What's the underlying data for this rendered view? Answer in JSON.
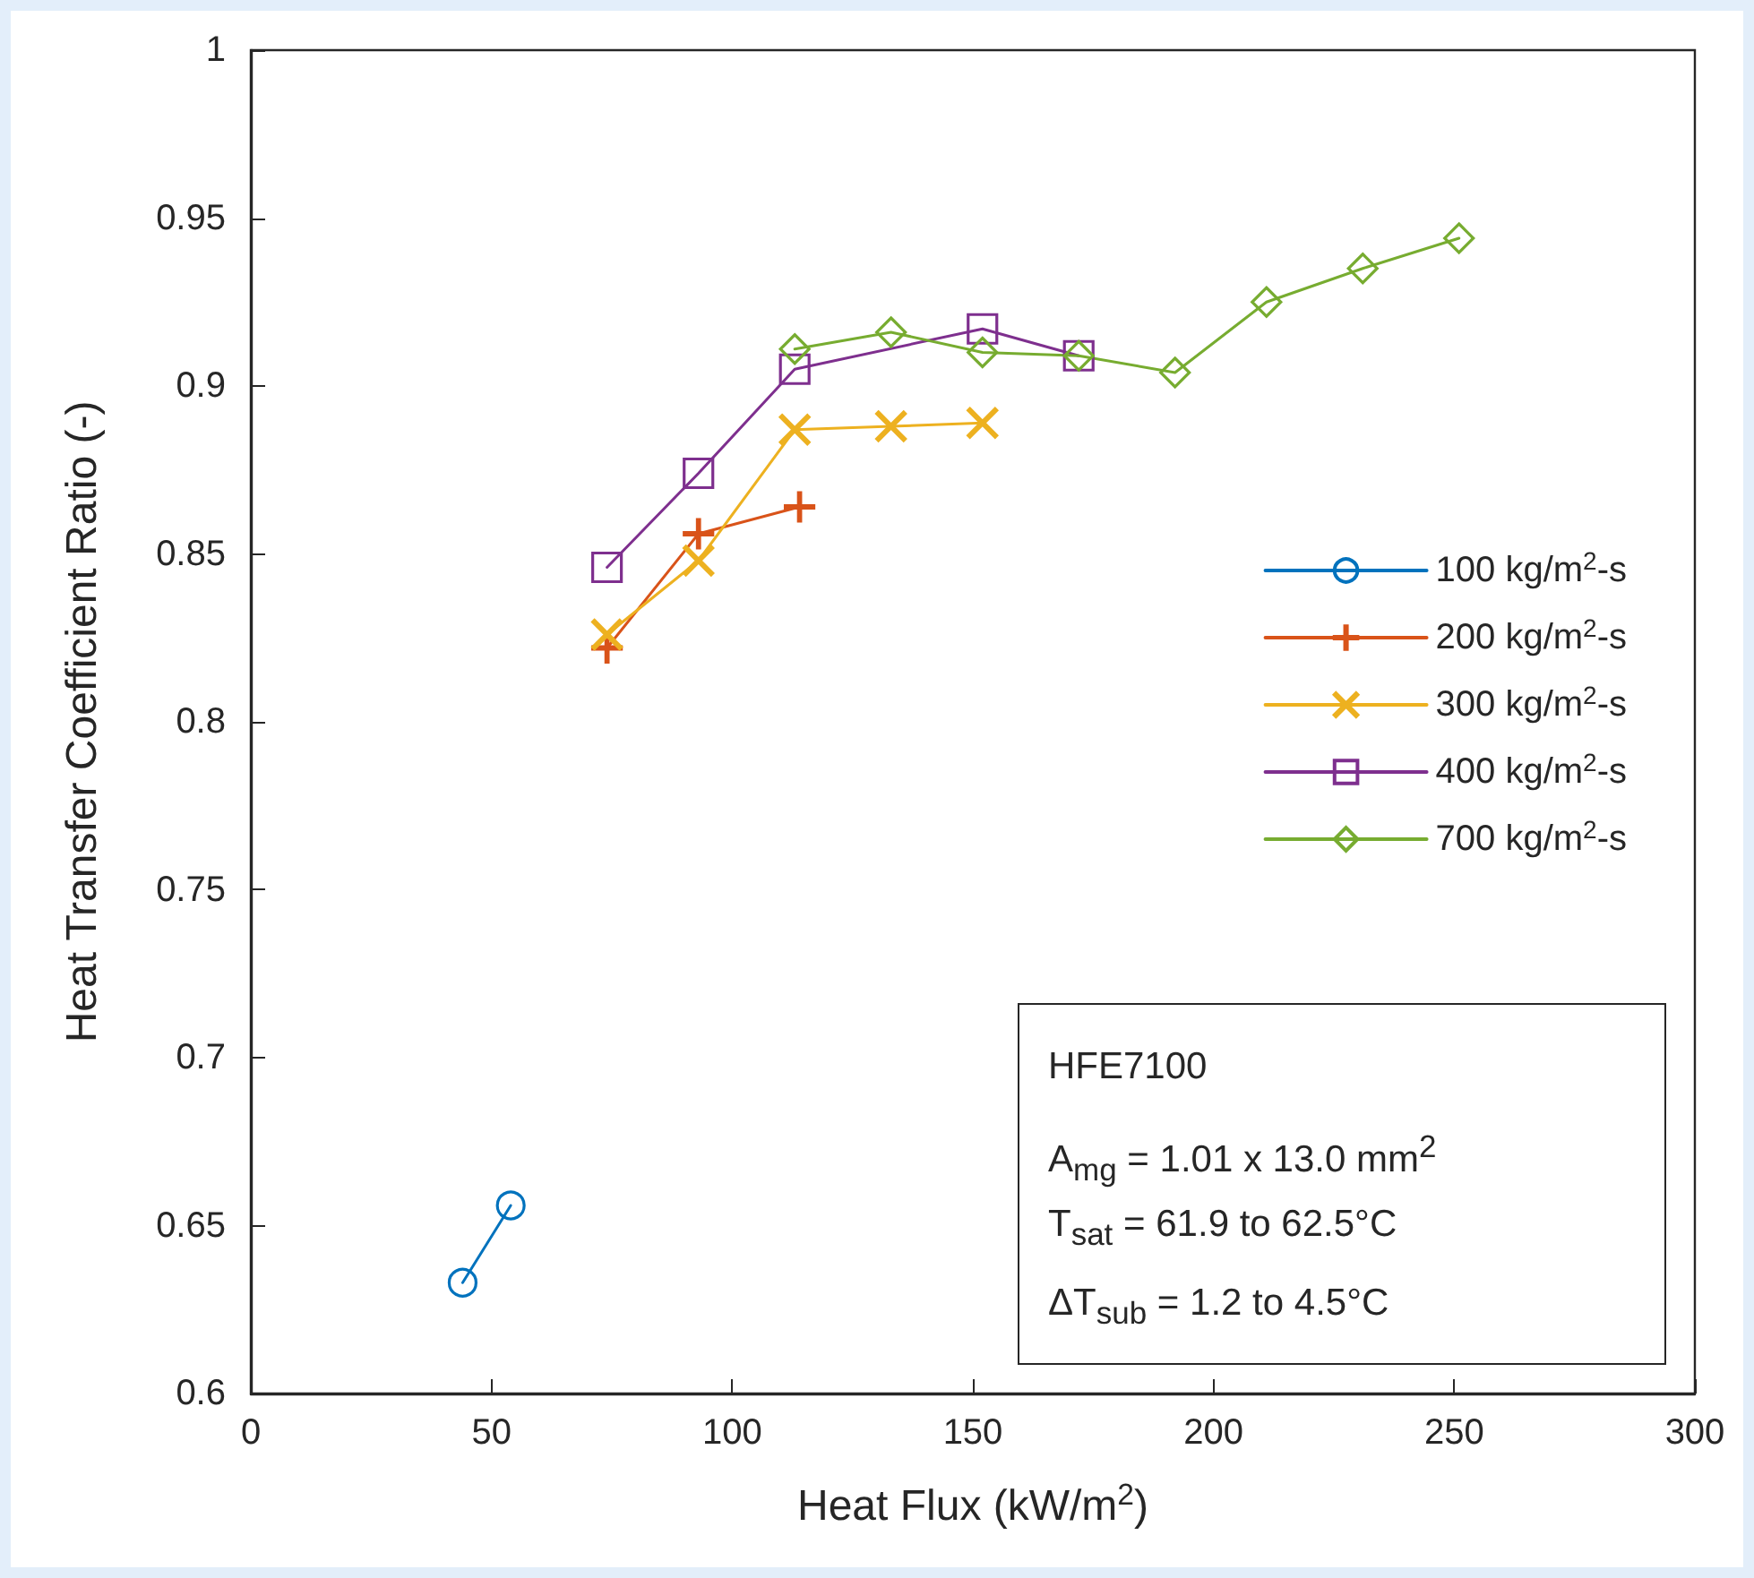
{
  "chart_data": {
    "type": "line",
    "xlabel": "Heat Flux (kW/m$^{2}$)",
    "ylabel": "Heat Transfer Coefficient Ratio (-)",
    "xlim": [
      0,
      300
    ],
    "xticks": [
      0,
      50,
      100,
      150,
      200,
      250,
      300
    ],
    "ylim": [
      0.6,
      1
    ],
    "yticks": [
      0.6,
      0.65,
      0.7,
      0.75,
      0.8,
      0.85,
      0.9,
      0.95,
      1
    ],
    "grid": false,
    "legend": "right",
    "line_style": "solid",
    "series": [
      {
        "name": "100 kg/m$^{2}$-s",
        "color": "#0072bd",
        "marker": "circle",
        "x": [
          44,
          54
        ],
        "values": [
          0.633,
          0.656
        ]
      },
      {
        "name": "200 kg/m$^{2}$-s",
        "color": "#d95319",
        "marker": "plus",
        "x": [
          74,
          93,
          114
        ],
        "values": [
          0.822,
          0.856,
          0.864
        ]
      },
      {
        "name": "300 kg/m$^{2}$-s",
        "color": "#edb120",
        "marker": "cross",
        "x": [
          74,
          93,
          113,
          133,
          152
        ],
        "values": [
          0.826,
          0.848,
          0.887,
          0.888,
          0.889
        ]
      },
      {
        "name": "400 kg/m$^{2}$-s",
        "color": "#7e2f8e",
        "marker": "square",
        "x": [
          74,
          93,
          113,
          152,
          172
        ],
        "values": [
          0.846,
          0.874,
          0.905,
          0.917,
          0.909
        ]
      },
      {
        "name": "700 kg/m$^{2}$-s",
        "color": "#77ac30",
        "marker": "diamond",
        "x": [
          113,
          133,
          152,
          172,
          192,
          211,
          231,
          251
        ],
        "values": [
          0.911,
          0.916,
          0.91,
          0.909,
          0.904,
          0.925,
          0.935,
          0.944
        ]
      }
    ],
    "annotations": [
      "HFE7100",
      "A$_{mg}$ = 1.01 x 13.0 mm$^{2}$",
      "T$_{sat}$ = 61.9 to 62.5°C",
      "ΔT$_{sub}$ = 1.2 to 4.5°C"
    ]
  }
}
